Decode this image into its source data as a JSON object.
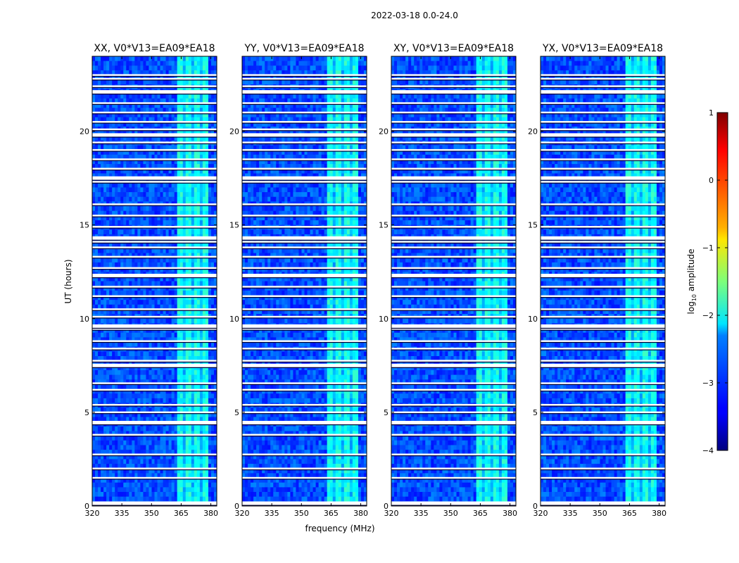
{
  "suptitle": "2022-03-18 0.0-24.0",
  "chart_data": {
    "type": "heatmap",
    "xlabel": "frequency (MHz)",
    "ylabel": "UT (hours)",
    "xlim": [
      320,
      383
    ],
    "ylim": [
      0,
      24
    ],
    "xticks": [
      320,
      335,
      350,
      365,
      380
    ],
    "xtick_labels": [
      "320",
      "335",
      "350",
      "365",
      "380"
    ],
    "yticks": [
      0,
      5,
      10,
      15,
      20
    ],
    "ytick_labels": [
      "0",
      "5",
      "10",
      "15",
      "20"
    ],
    "panels": [
      {
        "title": "XX, V0*V13=EA09*EA18"
      },
      {
        "title": "YY, V0*V13=EA09*EA18"
      },
      {
        "title": "XY, V0*V13=EA09*EA18"
      },
      {
        "title": "YX, V0*V13=EA09*EA18"
      }
    ],
    "colorbar": {
      "label": "log",
      "label_sub": "10",
      "label_rest": " amplitude",
      "range": [
        -4,
        1
      ],
      "ticks": [
        1,
        0,
        -1,
        -2,
        -3,
        -4
      ],
      "tick_labels": [
        "1",
        "0",
        "−1",
        "−2",
        "−3",
        "−4"
      ]
    },
    "background_log_amplitude": -3.0,
    "rfi_band_mhz": [
      363,
      378
    ],
    "rfi_band_log_amplitude": -2.1,
    "flagged_hours": [
      0.15,
      1.5,
      2.0,
      2.75,
      3.8,
      4.45,
      5.0,
      5.4,
      6.2,
      6.55,
      7.5,
      7.75,
      8.4,
      8.8,
      9.45,
      9.6,
      10.1,
      10.5,
      11.2,
      11.7,
      12.3,
      12.7,
      13.3,
      13.8,
      14.1,
      14.3,
      14.9,
      15.5,
      16.1,
      17.3,
      17.5,
      18.0,
      18.5,
      19.0,
      19.4,
      19.8,
      20.1,
      20.5,
      21.0,
      21.5,
      22.1,
      22.4,
      22.8,
      23.0
    ]
  }
}
